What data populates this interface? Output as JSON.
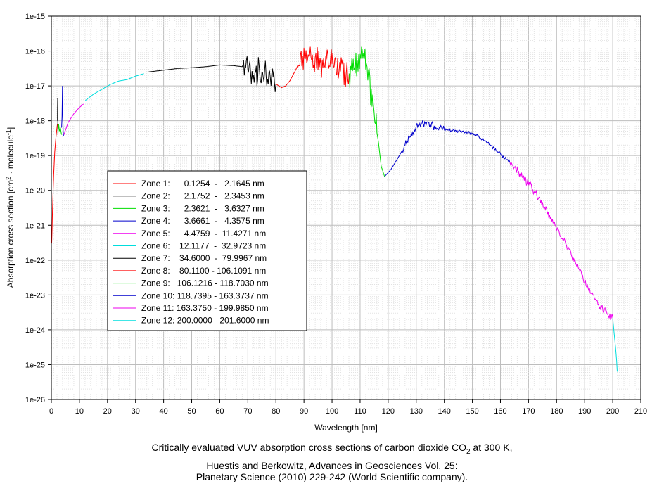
{
  "caption": {
    "line1_pre": "Critically evaluated VUV absorption cross sections of carbon dioxide CO",
    "line1_sub": "2",
    "line1_post": " at 300 K,",
    "line2": "Huestis and Berkowitz, Advances in Geosciences Vol. 25:",
    "line3": "Planetary Science (2010) 229-242 (World Scientific company)."
  },
  "chart_data": {
    "type": "line",
    "xlabel": "Wavelength [nm]",
    "ylabel_main": "Absorption cross section [cm",
    "ylabel_sup1": "2",
    "ylabel_mid": " · molecule",
    "ylabel_sup2": "-1",
    "ylabel_end": "]",
    "xlim": [
      0,
      210
    ],
    "ylim_exp": [
      -26,
      -15
    ],
    "y_scale": "log",
    "grid": true,
    "x_ticks": [
      "0",
      "10",
      "20",
      "30",
      "40",
      "50",
      "60",
      "70",
      "80",
      "90",
      "100",
      "110",
      "120",
      "130",
      "140",
      "150",
      "160",
      "170",
      "180",
      "190",
      "200",
      "210"
    ],
    "y_ticks": [
      "1e-26",
      "1e-25",
      "1e-24",
      "1e-23",
      "1e-22",
      "1e-21",
      "1e-20",
      "1e-19",
      "1e-18",
      "1e-17",
      "1e-16",
      "1e-15"
    ],
    "legend_position": "center-left",
    "series": [
      {
        "name": "Zone 1:      0.1254  -   2.1645 nm",
        "color": "#ff0000",
        "x": [
          0.13,
          0.4,
          0.8,
          1.2,
          1.6,
          2.0,
          2.16
        ],
        "y": [
          -21.5,
          -20.6,
          -19.6,
          -18.9,
          -18.5,
          -18.2,
          -18.1
        ]
      },
      {
        "name": "Zone 2:      2.1752  -   2.3453 nm",
        "color": "#000000",
        "x": [
          2.18,
          2.25,
          2.3,
          2.35
        ],
        "y": [
          -18.0,
          -17.35,
          -18.0,
          -18.4
        ]
      },
      {
        "name": "Zone 3:      2.3621  -   3.6327 nm",
        "color": "#00dd00",
        "x": [
          2.36,
          2.6,
          2.9,
          3.2,
          3.63
        ],
        "y": [
          -18.4,
          -18.1,
          -18.3,
          -18.2,
          -18.4
        ]
      },
      {
        "name": "Zone 4:      3.6661  -   4.3575 nm",
        "color": "#0000cc",
        "x": [
          3.67,
          3.8,
          3.95,
          4.05,
          4.2,
          4.36
        ],
        "y": [
          -18.2,
          -17.9,
          -17.0,
          -17.8,
          -18.3,
          -18.45
        ]
      },
      {
        "name": "Zone 5:      4.4759  -  11.4271 nm",
        "color": "#ee00ee",
        "x": [
          4.48,
          6,
          8,
          10,
          11.43
        ],
        "y": [
          -18.4,
          -18.05,
          -17.8,
          -17.62,
          -17.52
        ]
      },
      {
        "name": "Zone 6:    12.1177  -  32.9723 nm",
        "color": "#00dddd",
        "x": [
          12.1,
          15,
          18,
          21,
          24,
          27,
          30,
          32.97
        ],
        "y": [
          -17.42,
          -17.24,
          -17.1,
          -16.96,
          -16.86,
          -16.82,
          -16.72,
          -16.65
        ]
      },
      {
        "name": "Zone 7:    34.6000  -  79.9967 nm",
        "color": "#000000",
        "x": [
          34.6,
          40,
          45,
          50,
          55,
          60,
          65,
          68,
          70,
          72,
          74,
          76,
          78,
          80
        ],
        "y": [
          -16.6,
          -16.55,
          -16.5,
          -16.48,
          -16.45,
          -16.4,
          -16.42,
          -16.45,
          -16.5,
          -16.6,
          -16.6,
          -16.7,
          -16.85,
          -16.95
        ]
      },
      {
        "name": "Zone 8:    80.1100 - 106.1091 nm",
        "color": "#ff0000",
        "x": [
          80.11,
          82,
          83.5,
          85,
          87,
          89,
          91,
          94,
          97,
          100,
          103,
          106.1
        ],
        "y": [
          -16.95,
          -17.05,
          -17.0,
          -16.85,
          -16.55,
          -16.2,
          -16.1,
          -16.3,
          -16.35,
          -16.4,
          -16.5,
          -16.65
        ]
      },
      {
        "name": "Zone 9:   106.1216 - 118.7030 nm",
        "color": "#00dd00",
        "x": [
          106.12,
          108,
          110,
          112,
          113.5,
          115,
          116.5,
          117.5,
          118.7
        ],
        "y": [
          -16.65,
          -16.3,
          -16.1,
          -16.4,
          -17.0,
          -17.8,
          -18.6,
          -19.3,
          -19.6
        ]
      },
      {
        "name": "Zone 10: 118.7395 - 163.3737 nm",
        "color": "#0000cc",
        "x": [
          118.74,
          121,
          124,
          127,
          130,
          133,
          136,
          140,
          145,
          150,
          155,
          160,
          163.37
        ],
        "y": [
          -19.6,
          -19.4,
          -19.0,
          -18.55,
          -18.2,
          -18.05,
          -18.15,
          -18.25,
          -18.3,
          -18.35,
          -18.6,
          -18.95,
          -19.2
        ]
      },
      {
        "name": "Zone 11: 163.3750 - 199.9850 nm",
        "color": "#ee00ee",
        "x": [
          163.38,
          167,
          171,
          175,
          179,
          183,
          187,
          190,
          193,
          196,
          199.99
        ],
        "y": [
          -19.2,
          -19.5,
          -19.9,
          -20.4,
          -20.95,
          -21.5,
          -22.1,
          -22.6,
          -23.05,
          -23.4,
          -23.65
        ]
      },
      {
        "name": "Zone 12: 200.0000 - 201.6000 nm",
        "color": "#00dddd",
        "x": [
          200.0,
          200.5,
          201.0,
          201.4,
          201.6
        ],
        "y": [
          -23.65,
          -24.1,
          -24.5,
          -24.9,
          -25.2
        ]
      }
    ]
  }
}
